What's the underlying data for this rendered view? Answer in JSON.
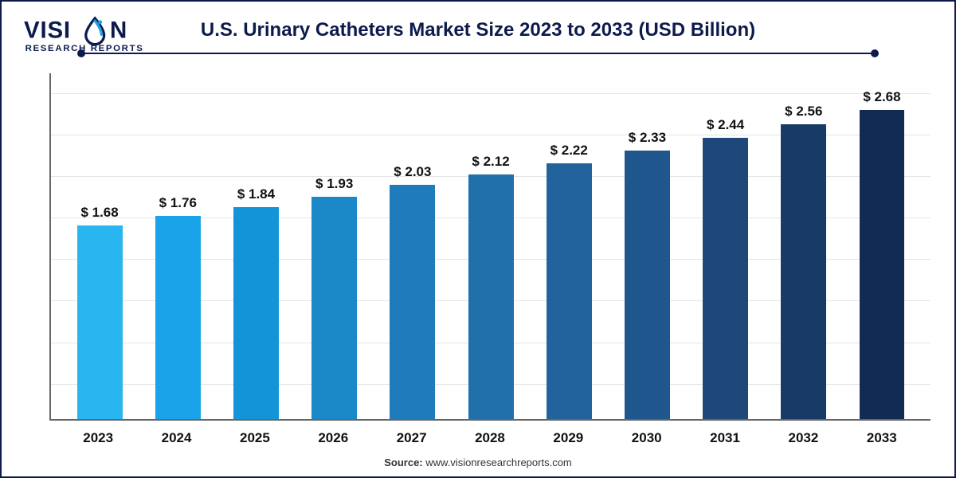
{
  "logo": {
    "primary": "VISI",
    "accent_letter_represented_by_icon": true,
    "primary_tail": "N",
    "sub": "RESEARCH REPORTS",
    "text_color": "#0d1b4c",
    "accent_color": "#1aa3e8"
  },
  "title": "U.S. Urinary Catheters Market Size 2023 to 2033 (USD Billion)",
  "title_color": "#0d1b4c",
  "frame_border_color": "#0d1b4c",
  "rule_color": "#0d1b4c",
  "chart": {
    "type": "bar",
    "background_color": "#ffffff",
    "grid_color": "#e5e5e5",
    "axis_color": "#666666",
    "ylim": [
      0,
      3.0
    ],
    "gridline_positions_pct": [
      10,
      22,
      34,
      46,
      58,
      70,
      82,
      94
    ],
    "label_fontsize": 17,
    "label_fontweight": "bold",
    "label_color": "#111111",
    "bar_width_pct": 58,
    "categories": [
      "2023",
      "2024",
      "2025",
      "2026",
      "2027",
      "2028",
      "2029",
      "2030",
      "2031",
      "2032",
      "2033"
    ],
    "value_labels": [
      "$ 1.68",
      "$ 1.76",
      "$ 1.84",
      "$ 1.93",
      "$ 2.03",
      "$ 2.12",
      "$ 2.22",
      "$ 2.33",
      "$ 2.44",
      "$ 2.56",
      "$ 2.68"
    ],
    "values": [
      1.68,
      1.76,
      1.84,
      1.93,
      2.03,
      2.12,
      2.22,
      2.33,
      2.44,
      2.56,
      2.68
    ],
    "bar_colors": [
      "#29b6f0",
      "#1aa3e8",
      "#1394d8",
      "#1b88c7",
      "#1f7bba",
      "#2170ac",
      "#22639d",
      "#20568e",
      "#1d4879",
      "#183a66",
      "#122b55"
    ]
  },
  "xaxis_labels": [
    "2023",
    "2024",
    "2025",
    "2026",
    "2027",
    "2028",
    "2029",
    "2030",
    "2031",
    "2032",
    "2033"
  ],
  "source_prefix": "Source: ",
  "source_text": "www.visionresearchreports.com"
}
